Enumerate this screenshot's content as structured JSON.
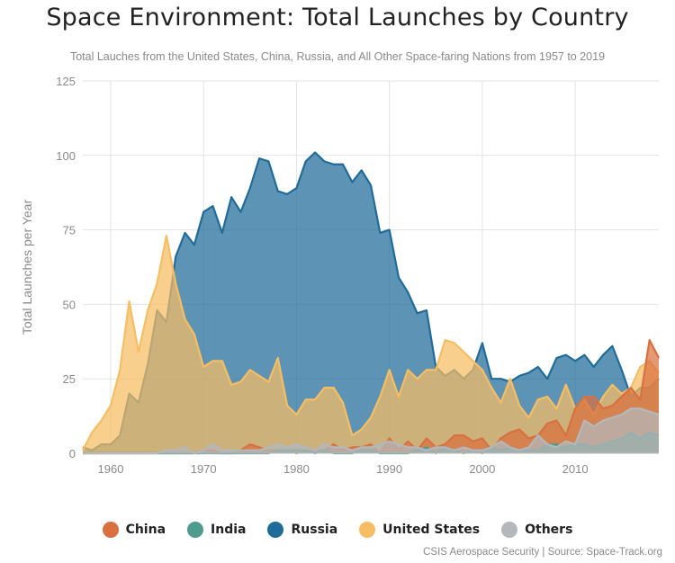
{
  "header": {
    "title": "Space Environment: Total Launches by Country",
    "subtitle": "Total Lauches from the United States, China, Russia, and All Other Space-faring Nations from 1957 to 2019"
  },
  "source": "CSIS Aerospace Security | Source: Space-Track.org",
  "chart_data": {
    "type": "area",
    "title": "Space Environment: Total Launches by Country",
    "subtitle": "Total Lauches from the United States, China, Russia, and All Other Space-faring Nations from 1957 to 2019",
    "xlabel": "",
    "ylabel": "Total Launches per Year",
    "xlim": [
      1957,
      2019
    ],
    "ylim": [
      0,
      125
    ],
    "x_ticks": [
      "1960",
      "1970",
      "1980",
      "1990",
      "2000",
      "2010"
    ],
    "y_ticks": [
      "0",
      "25",
      "50",
      "75",
      "100",
      "125"
    ],
    "grid": true,
    "legend_position": "bottom",
    "overlapping": true,
    "x": [
      1957,
      1958,
      1959,
      1960,
      1961,
      1962,
      1963,
      1964,
      1965,
      1966,
      1967,
      1968,
      1969,
      1970,
      1971,
      1972,
      1973,
      1974,
      1975,
      1976,
      1977,
      1978,
      1979,
      1980,
      1981,
      1982,
      1983,
      1984,
      1985,
      1986,
      1987,
      1988,
      1989,
      1990,
      1991,
      1992,
      1993,
      1994,
      1995,
      1996,
      1997,
      1998,
      1999,
      2000,
      2001,
      2002,
      2003,
      2004,
      2005,
      2006,
      2007,
      2008,
      2009,
      2010,
      2011,
      2012,
      2013,
      2014,
      2015,
      2016,
      2017,
      2018,
      2019
    ],
    "series": [
      {
        "name": "Russia",
        "color": "#1f6b9a",
        "values": [
          2,
          1,
          3,
          3,
          6,
          20,
          17,
          30,
          48,
          44,
          66,
          74,
          70,
          81,
          83,
          74,
          86,
          81,
          89,
          99,
          98,
          88,
          87,
          89,
          98,
          101,
          98,
          97,
          97,
          91,
          95,
          90,
          74,
          75,
          59,
          54,
          47,
          48,
          29,
          26,
          28,
          25,
          28,
          37,
          25,
          25,
          24,
          26,
          27,
          29,
          25,
          32,
          33,
          31,
          33,
          29,
          33,
          36,
          28,
          19,
          22,
          22,
          25
        ]
      },
      {
        "name": "United States",
        "color": "#f6bd63",
        "values": [
          1,
          7,
          11,
          16,
          28,
          51,
          34,
          48,
          57,
          73,
          57,
          45,
          40,
          29,
          31,
          31,
          23,
          24,
          28,
          26,
          24,
          32,
          16,
          13,
          18,
          18,
          22,
          22,
          17,
          6,
          8,
          12,
          19,
          28,
          19,
          28,
          25,
          28,
          28,
          38,
          37,
          34,
          31,
          28,
          22,
          17,
          25,
          16,
          12,
          18,
          19,
          15,
          23,
          15,
          18,
          13,
          19,
          23,
          20,
          22,
          29,
          31,
          27
        ]
      },
      {
        "name": "China",
        "color": "#d9703f",
        "values": [
          0,
          0,
          0,
          0,
          0,
          0,
          0,
          0,
          0,
          0,
          0,
          0,
          0,
          1,
          1,
          0,
          0,
          1,
          3,
          2,
          1,
          1,
          1,
          0,
          1,
          1,
          1,
          3,
          1,
          2,
          2,
          3,
          0,
          5,
          1,
          4,
          1,
          5,
          2,
          3,
          6,
          6,
          4,
          5,
          1,
          5,
          7,
          8,
          5,
          6,
          10,
          11,
          6,
          15,
          19,
          19,
          15,
          16,
          19,
          22,
          18,
          38,
          32
        ]
      },
      {
        "name": "India",
        "color": "#4f9c8e",
        "values": [
          0,
          0,
          0,
          0,
          0,
          0,
          0,
          0,
          0,
          0,
          0,
          0,
          0,
          0,
          0,
          0,
          0,
          0,
          0,
          0,
          0,
          1,
          1,
          1,
          1,
          0,
          1,
          0,
          0,
          0,
          1,
          1,
          0,
          0,
          0,
          0,
          1,
          2,
          0,
          2,
          1,
          0,
          1,
          0,
          2,
          1,
          2,
          1,
          1,
          1,
          3,
          3,
          2,
          3,
          3,
          2,
          3,
          4,
          5,
          7,
          5,
          7,
          6
        ]
      },
      {
        "name": "Others",
        "color": "#b3b8bd",
        "values": [
          0,
          0,
          0,
          0,
          0,
          0,
          0,
          0,
          0,
          1,
          1,
          2,
          0,
          1,
          3,
          1,
          1,
          1,
          1,
          1,
          2,
          3,
          2,
          3,
          2,
          1,
          3,
          2,
          2,
          1,
          2,
          2,
          3,
          4,
          3,
          2,
          2,
          1,
          2,
          2,
          1,
          2,
          1,
          1,
          2,
          4,
          2,
          1,
          2,
          6,
          3,
          2,
          4,
          3,
          11,
          9,
          11,
          12,
          13,
          15,
          15,
          14,
          13
        ]
      }
    ]
  }
}
